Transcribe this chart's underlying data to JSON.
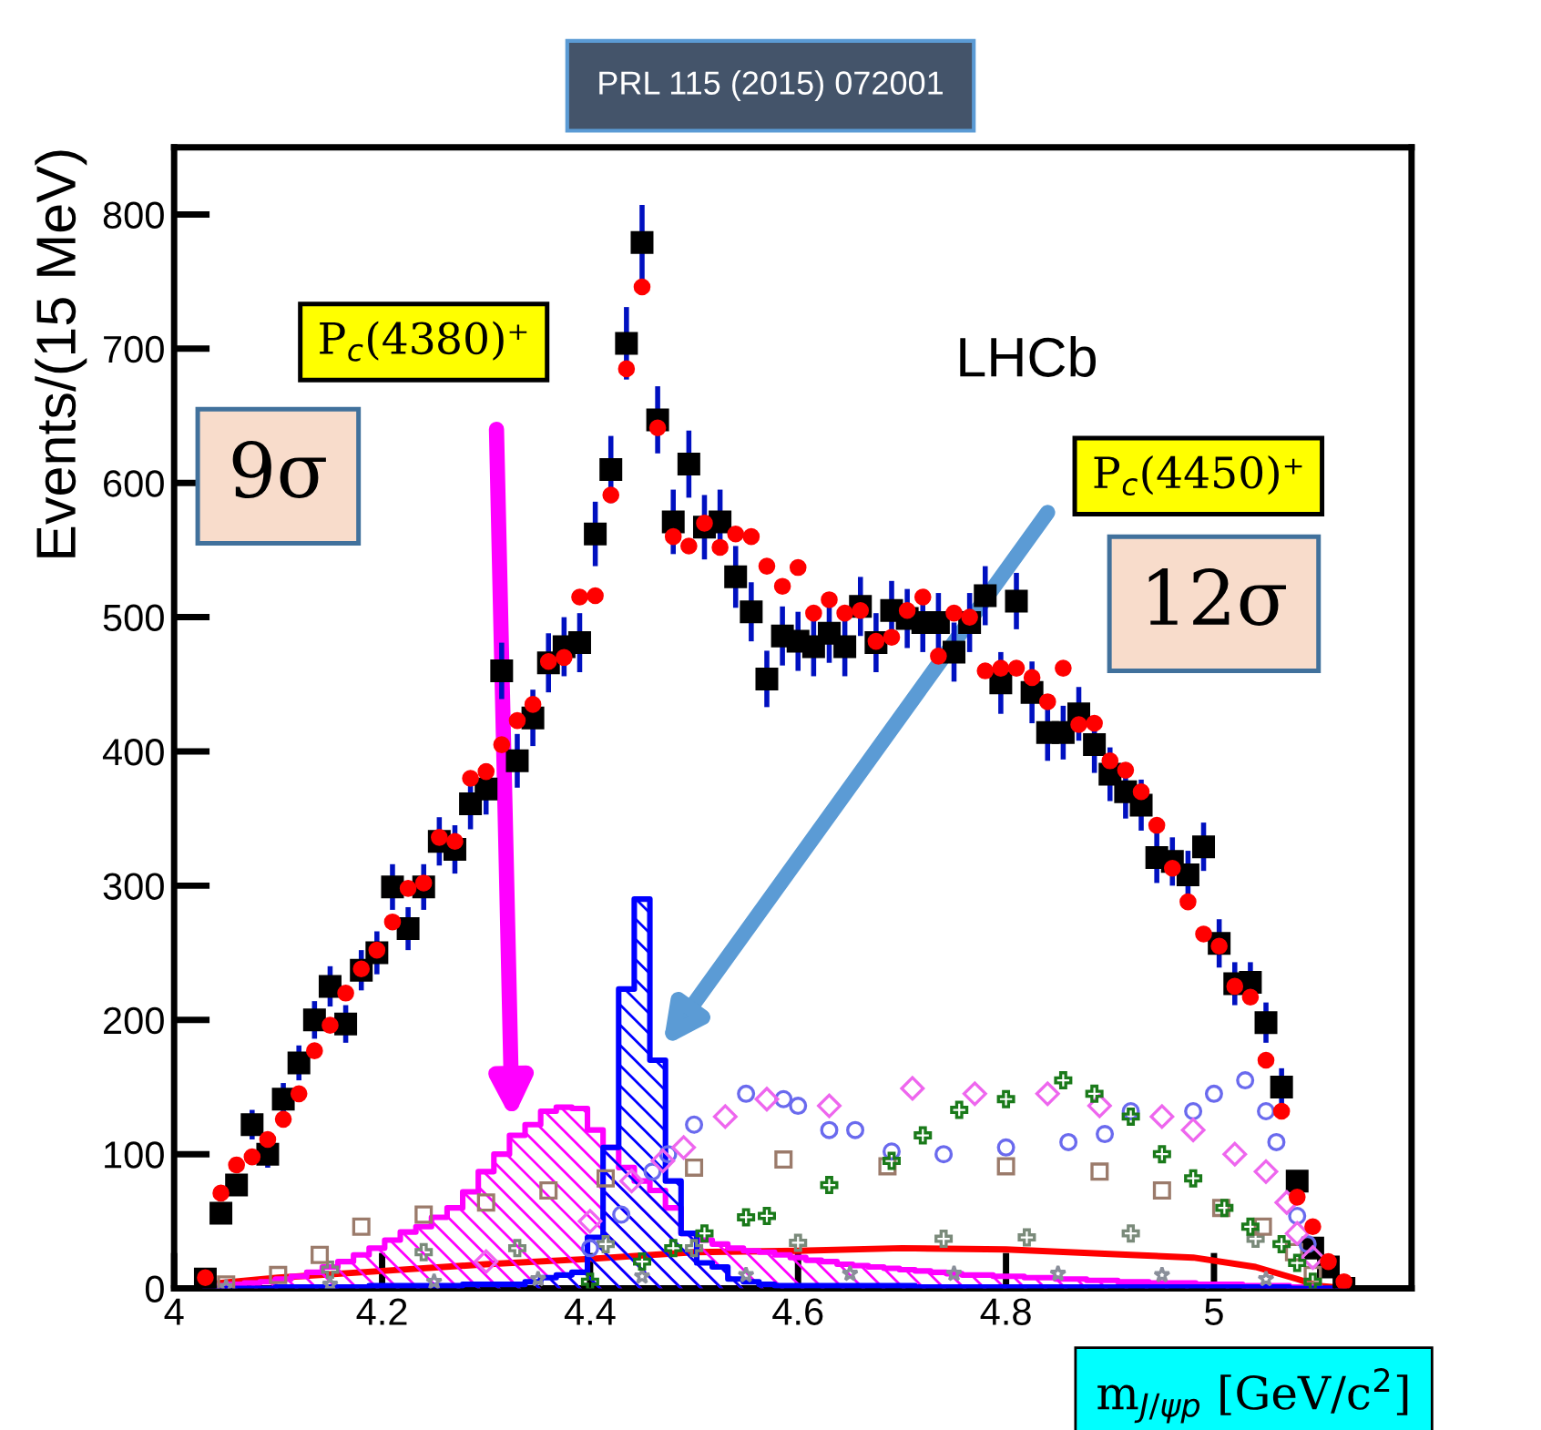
{
  "chart_data": {
    "type": "scatter",
    "title": "PRL 115 (2015) 072001",
    "xlabel": "m$_{J/ψp}$ [GeV/c$^{2}$]",
    "ylabel": "Events/(15 MeV)",
    "x": [
      4.03,
      4.045,
      4.06,
      4.075,
      4.09,
      4.105,
      4.12,
      4.135,
      4.15,
      4.165,
      4.18,
      4.195,
      4.21,
      4.225,
      4.24,
      4.255,
      4.27,
      4.285,
      4.3,
      4.315,
      4.33,
      4.345,
      4.36,
      4.375,
      4.39,
      4.405,
      4.42,
      4.435,
      4.45,
      4.465,
      4.48,
      4.495,
      4.51,
      4.525,
      4.54,
      4.555,
      4.57,
      4.585,
      4.6,
      4.615,
      4.63,
      4.645,
      4.66,
      4.675,
      4.69,
      4.705,
      4.72,
      4.735,
      4.75,
      4.765,
      4.78,
      4.795,
      4.81,
      4.825,
      4.84,
      4.855,
      4.87,
      4.885,
      4.9,
      4.915,
      4.93,
      4.945,
      4.96,
      4.975,
      4.99,
      5.005,
      5.02,
      5.035,
      5.05,
      5.065,
      5.08,
      5.095,
      5.11,
      5.125
    ],
    "series": [
      {
        "type": "line",
        "color": "#ff0000",
        "x": [
          4.03,
          4.1,
          4.2,
          4.3,
          4.4,
          4.5,
          4.6,
          4.7,
          4.8,
          4.86,
          4.92,
          4.98,
          5.04,
          5.08,
          5.1,
          5.13
        ],
        "values": [
          3,
          8,
          13,
          18,
          22,
          27,
          28,
          30,
          29,
          27,
          25,
          23,
          16,
          7,
          2,
          0
        ]
      },
      {
        "marker": "cross",
        "color": "#7a8a7a",
        "x": [
          4.15,
          4.24,
          4.33,
          4.415,
          4.5,
          4.6,
          4.74,
          4.82,
          4.92,
          5.04
        ],
        "values": [
          14,
          27,
          30,
          33,
          30,
          34,
          37,
          38,
          41,
          37
        ]
      },
      {
        "marker": "star",
        "color": "#8a8f9a",
        "x": [
          4.05,
          4.15,
          4.25,
          4.35,
          4.45,
          4.55,
          4.65,
          4.75,
          4.85,
          4.95,
          5.05
        ],
        "values": [
          1,
          3,
          5,
          7,
          9,
          10,
          11,
          11,
          11,
          10,
          7
        ]
      },
      {
        "marker": "square",
        "color": "#9b7b6b",
        "x": [
          4.05,
          4.1,
          4.14,
          4.18,
          4.24,
          4.3,
          4.36,
          4.415,
          4.5,
          4.586,
          4.686,
          4.8,
          4.89,
          4.95,
          5.007,
          5.047,
          5.077,
          5.095
        ],
        "values": [
          3,
          10,
          25,
          46,
          55,
          64,
          73,
          82,
          90,
          96,
          91,
          91,
          87,
          73,
          60,
          46,
          27,
          10
        ]
      },
      {
        "marker": "circle",
        "color": "#6a6aee",
        "x": [
          4.4,
          4.43,
          4.46,
          4.475,
          4.5,
          4.55,
          4.586,
          4.6,
          4.63,
          4.655,
          4.69,
          4.74,
          4.8,
          4.86,
          4.895,
          4.92,
          4.98,
          5.0,
          5.03,
          5.05,
          5.06,
          5.08,
          5.09
        ],
        "values": [
          30,
          55,
          87,
          100,
          122,
          145,
          141,
          136,
          118,
          118,
          102,
          100,
          105,
          109,
          115,
          132,
          132,
          145,
          155,
          132,
          109,
          54,
          33
        ]
      },
      {
        "marker": "diamond",
        "color": "#ee66ee",
        "x": [
          4.3,
          4.4,
          4.44,
          4.47,
          4.49,
          4.53,
          4.57,
          4.63,
          4.71,
          4.77,
          4.84,
          4.89,
          4.95,
          4.98,
          5.02,
          5.05,
          5.07,
          5.08,
          5.095
        ],
        "values": [
          20,
          50,
          80,
          95,
          105,
          128,
          141,
          136,
          149,
          145,
          145,
          136,
          128,
          118,
          100,
          87,
          64,
          41,
          23
        ]
      },
      {
        "marker": "cross",
        "color": "#1a7a1a",
        "x": [
          4.4,
          4.45,
          4.48,
          4.51,
          4.55,
          4.57,
          4.63,
          4.69,
          4.72,
          4.755,
          4.8,
          4.855,
          4.885,
          4.92,
          4.95,
          4.98,
          5.01,
          5.035,
          5.065,
          5.08,
          5.095
        ],
        "values": [
          5,
          20,
          30,
          41,
          53,
          54,
          77,
          95,
          114,
          133,
          141,
          155,
          145,
          128,
          100,
          82,
          60,
          46,
          33,
          19,
          5
        ]
      },
      {
        "type": "area",
        "color": "#ff00ff",
        "values": [
          1,
          2,
          3,
          4,
          5,
          7,
          9,
          12,
          16,
          20,
          25,
          30,
          36,
          42,
          46,
          53,
          60,
          72,
          87,
          100,
          114,
          122,
          132,
          135,
          134,
          118,
          105,
          90,
          80,
          73,
          60,
          41,
          36,
          33,
          30,
          28,
          27,
          25,
          23,
          21,
          20,
          18,
          17,
          16,
          15,
          14,
          13,
          12,
          11,
          10,
          10,
          9,
          9,
          8,
          8,
          7,
          7,
          6,
          6,
          5,
          5,
          4,
          4,
          4,
          3,
          3,
          3,
          2,
          2,
          2,
          1,
          1,
          0,
          0
        ]
      },
      {
        "type": "area",
        "color": "#0000ff",
        "values": [
          0,
          0,
          0,
          0,
          0,
          1,
          1,
          1,
          1,
          1,
          1,
          2,
          2,
          2,
          2,
          2,
          2,
          3,
          3,
          3,
          3,
          5,
          8,
          10,
          12,
          38,
          105,
          223,
          290,
          170,
          80,
          41,
          19,
          16,
          7,
          5,
          3,
          2,
          2,
          2,
          2,
          2,
          2,
          2,
          2,
          2,
          1,
          1,
          1,
          1,
          1,
          1,
          1,
          1,
          1,
          1,
          1,
          1,
          1,
          1,
          1,
          1,
          1,
          1,
          1,
          1,
          1,
          1,
          1,
          1,
          0,
          0,
          0,
          0
        ]
      },
      {
        "marker": "circle",
        "color": "#ff0000",
        "values": [
          8,
          71,
          92,
          98,
          111,
          126,
          145,
          177,
          196,
          220,
          238,
          252,
          273,
          298,
          302,
          336,
          333,
          380,
          385,
          405,
          423,
          435,
          467,
          470,
          515,
          516,
          591,
          685,
          746,
          641,
          560,
          553,
          570,
          552,
          562,
          560,
          538,
          523,
          537,
          503,
          513,
          503,
          505,
          482,
          485,
          505,
          515,
          471,
          503,
          500,
          460,
          462,
          462,
          455,
          437,
          462,
          420,
          421,
          393,
          386,
          370,
          345,
          313,
          288,
          264,
          255,
          225,
          217,
          170,
          132,
          68,
          46,
          20,
          5
        ]
      },
      {
        "marker": "square",
        "color": "#000000",
        "values": [
          7,
          56,
          77,
          122,
          100,
          141,
          168,
          200,
          225,
          197,
          237,
          250,
          299,
          268,
          299,
          333,
          327,
          361,
          372,
          460,
          393,
          425,
          466,
          478,
          481,
          562,
          610,
          704,
          779,
          647,
          571,
          614,
          567,
          571,
          530,
          504,
          454,
          486,
          482,
          478,
          488,
          478,
          508,
          481,
          505,
          499,
          496,
          496,
          474,
          496,
          516,
          451,
          512,
          444,
          414,
          414,
          428,
          405,
          383,
          370,
          360,
          321,
          318,
          308,
          329,
          257,
          227,
          228,
          198,
          150,
          80,
          30,
          16,
          0
        ],
        "errors": [
          null,
          null,
          null,
          11,
          10,
          12,
          13,
          14,
          15,
          14,
          15,
          16,
          17,
          16,
          17,
          18,
          18,
          19,
          19,
          21,
          20,
          21,
          22,
          22,
          22,
          24,
          25,
          27,
          28,
          25,
          24,
          25,
          24,
          24,
          23,
          22,
          21,
          22,
          22,
          22,
          22,
          22,
          22,
          22,
          22,
          22,
          22,
          22,
          22,
          22,
          22,
          23,
          21,
          23,
          21,
          20,
          20,
          21,
          20,
          20,
          19,
          19,
          18,
          18,
          18,
          18,
          16,
          15,
          15,
          14,
          null,
          null,
          null,
          null
        ]
      }
    ],
    "annotations": [
      "P$_{c}$(4380)⁺",
      "9σ",
      "P$_{c}$(4450)⁺",
      "12σ",
      "LHCb"
    ],
    "xlim": [
      4.0,
      5.19
    ],
    "ylim": [
      0,
      850
    ],
    "xticks": [
      4,
      4.2,
      4.4,
      4.6,
      4.8,
      5
    ],
    "yticks": [
      0,
      100,
      200,
      300,
      400,
      500,
      600,
      700,
      800
    ],
    "grid": false,
    "legend": false
  }
}
